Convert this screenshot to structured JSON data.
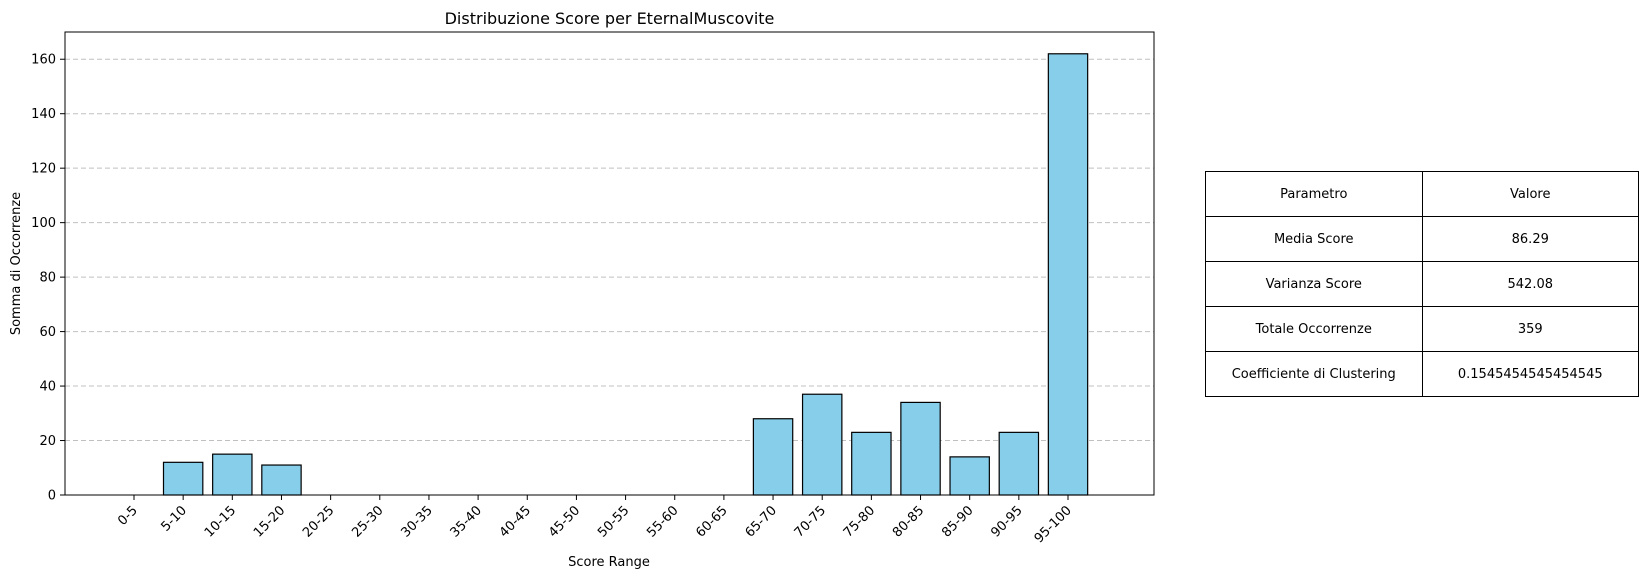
{
  "chart_data": {
    "type": "bar",
    "title": "Distribuzione Score per EternalMuscovite",
    "xlabel": "Score Range",
    "ylabel": "Somma di Occorrenze",
    "categories": [
      "0-5",
      "5-10",
      "10-15",
      "15-20",
      "20-25",
      "25-30",
      "30-35",
      "35-40",
      "40-45",
      "45-50",
      "50-55",
      "55-60",
      "60-65",
      "65-70",
      "70-75",
      "75-80",
      "80-85",
      "85-90",
      "90-95",
      "95-100"
    ],
    "values": [
      0,
      12,
      15,
      11,
      0,
      0,
      0,
      0,
      0,
      0,
      0,
      0,
      0,
      28,
      37,
      23,
      34,
      14,
      23,
      162
    ],
    "ylim": [
      0,
      170
    ],
    "yticks": [
      0,
      20,
      40,
      60,
      80,
      100,
      120,
      140,
      160
    ],
    "grid": "y-dashed",
    "bar_color": "#87CEEB",
    "edge_color": "#000000"
  },
  "table": {
    "header": {
      "param": "Parametro",
      "value": "Valore"
    },
    "rows": [
      {
        "param": "Media Score",
        "value": "86.29"
      },
      {
        "param": "Varianza Score",
        "value": "542.08"
      },
      {
        "param": "Totale Occorrenze",
        "value": "359"
      },
      {
        "param": "Coefficiente di Clustering",
        "value": "0.1545454545454545"
      }
    ]
  }
}
